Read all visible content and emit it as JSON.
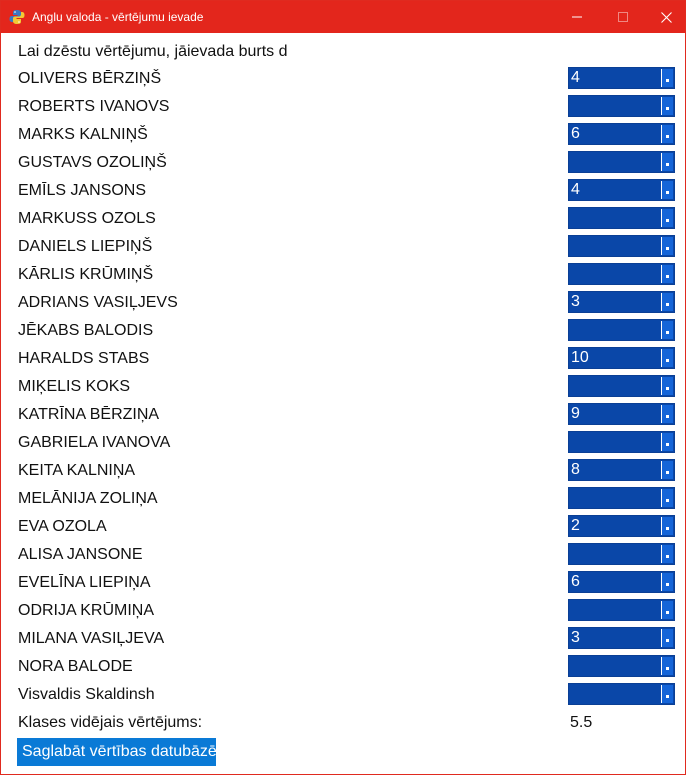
{
  "window": {
    "title": "Anglu valoda - vērtējumu ievade",
    "titlebar_color": "#e3261c",
    "controls": [
      "minimize-icon",
      "maximize-icon",
      "close-icon"
    ]
  },
  "hint": "Lai dzēstu vērtējumu, jāievada burts d",
  "students": [
    {
      "name": "OLIVERS BĒRZIŅŠ",
      "grade": "4"
    },
    {
      "name": "ROBERTS IVANOVS",
      "grade": ""
    },
    {
      "name": "MARKS KALNIŅŠ",
      "grade": "6"
    },
    {
      "name": "GUSTAVS OZOLIŅŠ",
      "grade": ""
    },
    {
      "name": "EMĪLS JANSONS",
      "grade": "4"
    },
    {
      "name": "MARKUSS OZOLS",
      "grade": ""
    },
    {
      "name": "DANIELS LIEPIŅŠ",
      "grade": ""
    },
    {
      "name": "KĀRLIS KRŪMIŅŠ",
      "grade": ""
    },
    {
      "name": "ADRIANS VASIĻJEVS",
      "grade": "3"
    },
    {
      "name": "JĒKABS BALODIS",
      "grade": ""
    },
    {
      "name": "HARALDS STABS",
      "grade": "10"
    },
    {
      "name": "MIĶELIS KOKS",
      "grade": ""
    },
    {
      "name": "KATRĪNA BĒRZIŅA",
      "grade": "9"
    },
    {
      "name": "GABRIELA IVANOVA",
      "grade": ""
    },
    {
      "name": "KEITA KALNIŅA",
      "grade": "8"
    },
    {
      "name": "MELĀNIJA ZOLIŅA",
      "grade": ""
    },
    {
      "name": "EVA OZOLA",
      "grade": "2"
    },
    {
      "name": "ALISA JANSONE",
      "grade": ""
    },
    {
      "name": "EVELĪNA LIEPIŅA",
      "grade": "6"
    },
    {
      "name": "ODRIJA KRŪMIŅA",
      "grade": ""
    },
    {
      "name": "MILANA VASIĻJEVA",
      "grade": "3"
    },
    {
      "name": "NORA BALODE",
      "grade": ""
    },
    {
      "name": "Visvaldis Skaldinsh",
      "grade": ""
    }
  ],
  "average": {
    "label": "Klases vidējais vērtējums:",
    "value": "5.5"
  },
  "save_button": "Saglabāt vērtības datubāzē",
  "colors": {
    "select_bg": "#0a47a8",
    "button_bg": "#0a7ad6"
  }
}
